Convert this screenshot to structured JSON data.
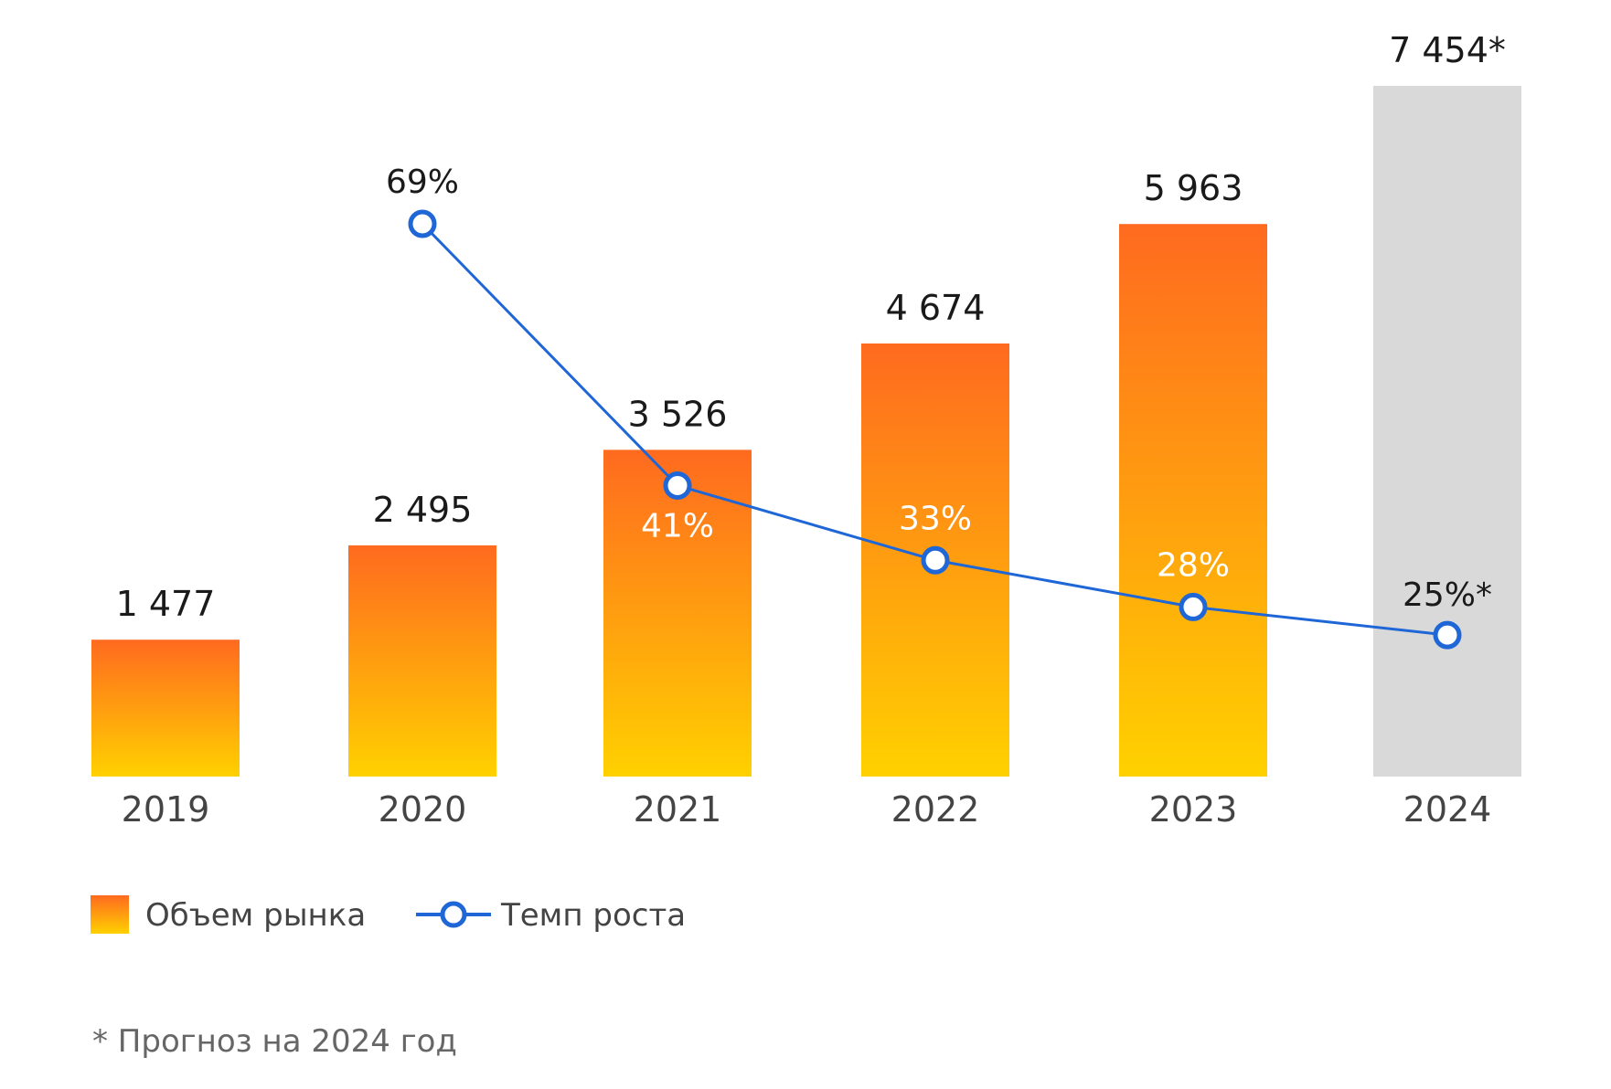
{
  "chart_data": {
    "type": "bar",
    "categories": [
      "2019",
      "2020",
      "2021",
      "2022",
      "2023",
      "2024"
    ],
    "bar_series": {
      "name": "Объем рынка",
      "values": [
        1477,
        2495,
        3526,
        4674,
        5963,
        7454
      ],
      "value_labels": [
        "1 477",
        "2 495",
        "3 526",
        "4 674",
        "5 963",
        "7 454*"
      ],
      "forecast": [
        false,
        false,
        false,
        false,
        false,
        true
      ]
    },
    "line_series": {
      "name": "Темп роста",
      "values": [
        null,
        69,
        41,
        33,
        28,
        25
      ],
      "value_labels": [
        "",
        "69%",
        "41%",
        "33%",
        "28%",
        "25%*"
      ]
    },
    "colors": {
      "bar_top": "#FF6A1F",
      "bar_bottom": "#FFD100",
      "forecast_bar": "#D9D9D9",
      "line": "#1F66D6",
      "marker_fill": "#FFFFFF"
    },
    "legend_placement": "bottom-left",
    "grid": false
  },
  "legend": {
    "bar_label": "Объем рынка",
    "line_label": "Темп роста"
  },
  "footnote": "* Прогноз на 2024 год"
}
